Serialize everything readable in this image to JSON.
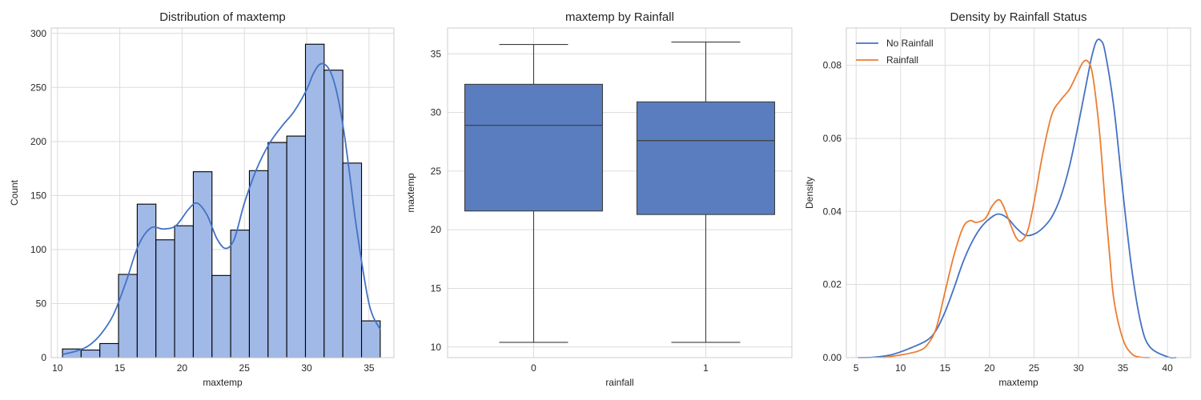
{
  "chart_data": [
    {
      "type": "bar",
      "subtype": "histogram_with_kde",
      "title": "Distribution of maxtemp",
      "xlabel": "maxtemp",
      "ylabel": "Count",
      "xlim": [
        9.5,
        37.0
      ],
      "ylim": [
        0,
        305
      ],
      "xticks": [
        10,
        15,
        20,
        25,
        30,
        35
      ],
      "yticks": [
        0,
        50,
        100,
        150,
        200,
        250,
        300
      ],
      "grid": true,
      "bar_color": "#a1b9e7",
      "edge_color": "#000000",
      "kde_color": "#4472c4",
      "bins": [
        {
          "x0": 10.4,
          "x1": 11.9,
          "count": 8
        },
        {
          "x0": 11.9,
          "x1": 13.4,
          "count": 7
        },
        {
          "x0": 13.4,
          "x1": 14.9,
          "count": 13
        },
        {
          "x0": 14.9,
          "x1": 16.4,
          "count": 77
        },
        {
          "x0": 16.4,
          "x1": 17.9,
          "count": 142
        },
        {
          "x0": 17.9,
          "x1": 19.4,
          "count": 109
        },
        {
          "x0": 19.4,
          "x1": 20.9,
          "count": 122
        },
        {
          "x0": 20.9,
          "x1": 22.4,
          "count": 172
        },
        {
          "x0": 22.4,
          "x1": 23.9,
          "count": 76
        },
        {
          "x0": 23.9,
          "x1": 25.4,
          "count": 118
        },
        {
          "x0": 25.4,
          "x1": 26.9,
          "count": 173
        },
        {
          "x0": 26.9,
          "x1": 28.4,
          "count": 199
        },
        {
          "x0": 28.4,
          "x1": 29.9,
          "count": 205
        },
        {
          "x0": 29.9,
          "x1": 31.4,
          "count": 290
        },
        {
          "x0": 31.4,
          "x1": 32.9,
          "count": 266
        },
        {
          "x0": 32.9,
          "x1": 34.4,
          "count": 180
        },
        {
          "x0": 34.4,
          "x1": 35.9,
          "count": 34
        }
      ],
      "kde": {
        "x": [
          10.4,
          11.5,
          12.5,
          13.5,
          14.5,
          15.5,
          16.5,
          17.5,
          18.5,
          19.5,
          20.5,
          21.2,
          22.0,
          22.8,
          23.5,
          24.2,
          25.0,
          26.0,
          27.0,
          28.0,
          29.0,
          30.0,
          30.5,
          31.0,
          31.5,
          32.0,
          32.5,
          33.0,
          33.5,
          34.0,
          35.0,
          35.9
        ],
        "y": [
          3,
          6,
          11,
          22,
          40,
          70,
          104,
          120,
          119,
          122,
          137,
          143,
          132,
          110,
          101,
          110,
          143,
          175,
          198,
          214,
          228,
          248,
          262,
          271,
          271,
          262,
          241,
          208,
          165,
          120,
          50,
          26
        ]
      }
    },
    {
      "type": "box",
      "title": "maxtemp by Rainfall",
      "xlabel": "rainfall",
      "ylabel": "maxtemp",
      "categories": [
        "0",
        "1"
      ],
      "ylim": [
        9.1,
        37.2
      ],
      "yticks": [
        10,
        15,
        20,
        25,
        30,
        35
      ],
      "grid": true,
      "box_color": "#5a7dc0",
      "boxes": [
        {
          "category": "0",
          "whisker_low": 10.4,
          "q1": 21.6,
          "median": 28.9,
          "q3": 32.4,
          "whisker_high": 35.8
        },
        {
          "category": "1",
          "whisker_low": 10.4,
          "q1": 21.3,
          "median": 27.6,
          "q3": 30.9,
          "whisker_high": 36.0
        }
      ]
    },
    {
      "type": "line",
      "subtype": "kde",
      "title": "Density by Rainfall Status",
      "xlabel": "maxtemp",
      "ylabel": "Density",
      "xlim": [
        3.9,
        42.6
      ],
      "ylim": [
        0,
        0.0902
      ],
      "xticks": [
        5,
        10,
        15,
        20,
        25,
        30,
        35,
        40
      ],
      "yticks": [
        0.0,
        0.02,
        0.04,
        0.06,
        0.08
      ],
      "ytick_labels": [
        "0.00",
        "0.02",
        "0.04",
        "0.06",
        "0.08"
      ],
      "grid": true,
      "legend_position": "top-left",
      "series": [
        {
          "name": "No Rainfall",
          "color": "#4472c4",
          "x": [
            5.2,
            7,
            9,
            11,
            13,
            14,
            15,
            16,
            17,
            18,
            19,
            20,
            21,
            22,
            23,
            24,
            25,
            26,
            27,
            28,
            29,
            30,
            31,
            31.5,
            32,
            32.5,
            33,
            34,
            35,
            36,
            37,
            38,
            40,
            41
          ],
          "y": [
            0.0,
            0.0001,
            0.0008,
            0.0025,
            0.0048,
            0.0075,
            0.0125,
            0.019,
            0.026,
            0.0315,
            0.0355,
            0.038,
            0.0393,
            0.0382,
            0.0355,
            0.0335,
            0.0338,
            0.0355,
            0.0385,
            0.044,
            0.0525,
            0.064,
            0.0765,
            0.0825,
            0.0865,
            0.0868,
            0.0835,
            0.068,
            0.045,
            0.024,
            0.0095,
            0.003,
            0.0002,
            0.0
          ]
        },
        {
          "name": "Rainfall",
          "color": "#ed7d31",
          "x": [
            8,
            10,
            12,
            13,
            14,
            15,
            16,
            17,
            17.8,
            18.5,
            19.5,
            20.3,
            21,
            21.5,
            22.3,
            23,
            23.6,
            24.3,
            25,
            26,
            27,
            28,
            29,
            30,
            30.5,
            31,
            31.5,
            32,
            32.5,
            33,
            33.5,
            34,
            35,
            36,
            37,
            38
          ],
          "y": [
            0.0,
            0.0007,
            0.0018,
            0.0035,
            0.008,
            0.018,
            0.028,
            0.0355,
            0.0375,
            0.037,
            0.038,
            0.0415,
            0.0432,
            0.0418,
            0.0368,
            0.0328,
            0.032,
            0.0348,
            0.0425,
            0.056,
            0.0665,
            0.0705,
            0.0735,
            0.0785,
            0.0808,
            0.0812,
            0.0785,
            0.07,
            0.058,
            0.042,
            0.028,
            0.0155,
            0.005,
            0.001,
            0.0001,
            0.0
          ]
        }
      ]
    }
  ]
}
